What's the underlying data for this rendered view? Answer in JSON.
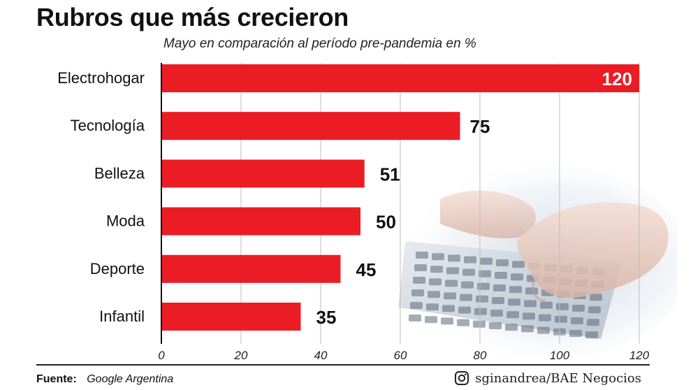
{
  "header": {
    "title": "Rubros que más crecieron",
    "subtitle": "Mayo en comparación al período pre-pandemia en %"
  },
  "footer": {
    "source_label": "Fuente:",
    "source_value": "Google Argentina",
    "credit": "sginandrea/BAE Negocios",
    "credit_icon": "instagram-icon"
  },
  "colors": {
    "bar": "#ec1c24",
    "label_on_bar": "#ffffff",
    "text": "#111111",
    "grid": "#bdbdbd"
  },
  "chart_data": {
    "type": "bar",
    "orientation": "horizontal",
    "title": "Rubros que más crecieron",
    "subtitle": "Mayo en comparación al período pre-pandemia en %",
    "categories": [
      "Electrohogar",
      "Tecnología",
      "Belleza",
      "Moda",
      "Deporte",
      "Infantil"
    ],
    "values": [
      120,
      75,
      51,
      50,
      45,
      35
    ],
    "xlim": [
      0,
      120
    ],
    "xticks": [
      0,
      20,
      40,
      60,
      80,
      100,
      120
    ],
    "grid": true,
    "legend": "none"
  }
}
